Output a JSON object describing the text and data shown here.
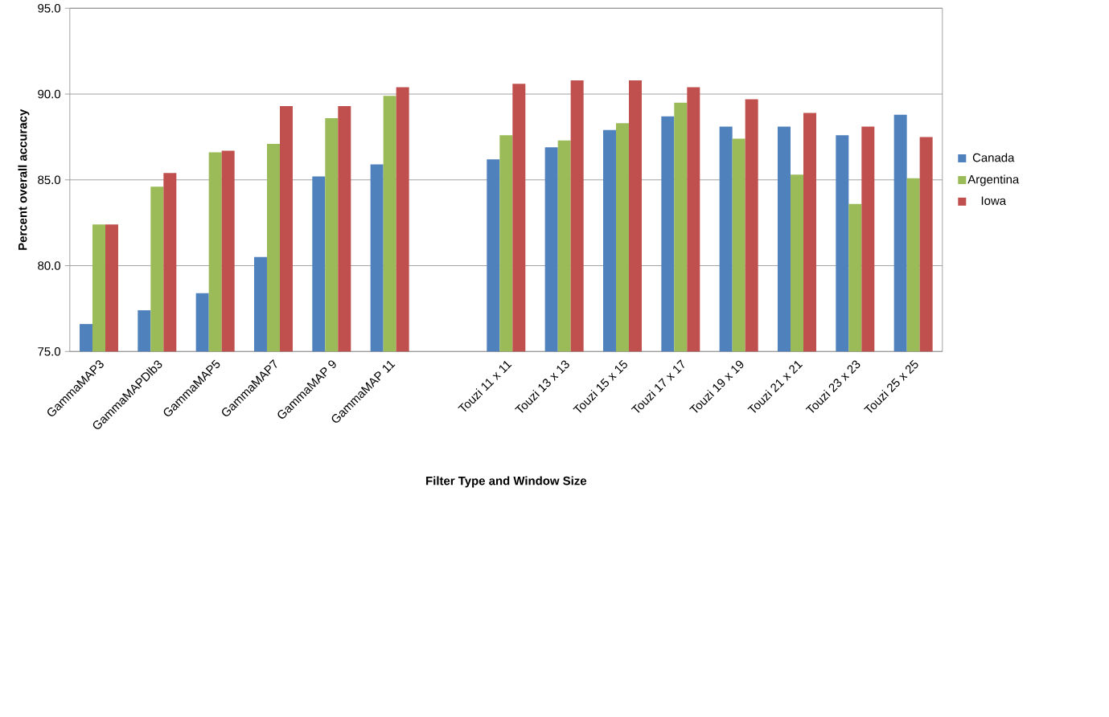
{
  "chart_data": {
    "type": "bar",
    "xlabel": "Filter Type and Window Size",
    "ylabel": "Percent overall accuracy",
    "categories": [
      "GammaMAP3",
      "GammaMAPDlb3",
      "GammaMAP5",
      "GammaMAP7",
      "GammaMAP 9",
      "GammaMAP 11",
      null,
      "Touzi 11 x 11",
      "Touzi 13 x 13",
      "Touzi 15 x 15",
      "Touzi 17 x 17",
      "Touzi 19 x 19",
      "Touzi 21 x 21",
      "Touzi 23 x 23",
      "Touzi 25 x 25"
    ],
    "series": [
      {
        "name": "Canada",
        "color": "#4f81bd",
        "values": [
          76.6,
          77.4,
          78.4,
          80.5,
          85.2,
          85.9,
          null,
          86.2,
          86.9,
          87.9,
          88.7,
          88.1,
          88.1,
          87.6,
          88.8
        ]
      },
      {
        "name": "Argentina",
        "color": "#9bbb59",
        "values": [
          82.4,
          84.6,
          86.6,
          87.1,
          88.6,
          89.9,
          null,
          87.6,
          87.3,
          88.3,
          89.5,
          87.4,
          85.3,
          83.6,
          85.1
        ]
      },
      {
        "name": "Iowa",
        "color": "#c0504d",
        "values": [
          82.4,
          85.4,
          86.7,
          89.3,
          89.3,
          90.4,
          null,
          90.6,
          90.8,
          90.8,
          90.4,
          89.7,
          88.9,
          88.1,
          87.5
        ]
      }
    ],
    "ylim": [
      75,
      95
    ],
    "yticks": [
      {
        "value": 75,
        "label": "75.0"
      },
      {
        "value": 80,
        "label": "80.0"
      },
      {
        "value": 85,
        "label": "85.0"
      },
      {
        "value": 90,
        "label": "90.0"
      },
      {
        "value": 95,
        "label": "95.0"
      }
    ],
    "grid": "y",
    "legend": "right"
  }
}
